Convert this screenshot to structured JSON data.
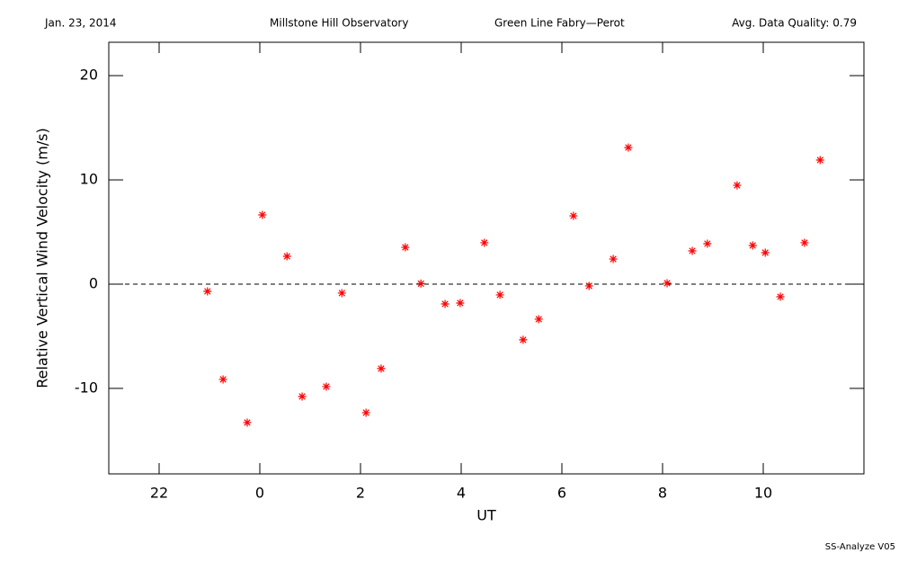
{
  "chart_data": {
    "type": "scatter",
    "header": [
      "Jan. 23, 2014",
      "Millstone Hill Observatory",
      "Green Line Fabry—Perot",
      "Avg. Data Quality: 0.79"
    ],
    "footer": "SS-Analyze V05",
    "x_label": "UT",
    "y_label": "Relative Vertical Wind Velocity (m/s)",
    "xlim": [
      -3,
      12
    ],
    "ylim": [
      -18.2,
      23.2
    ],
    "xticks": [
      {
        "value": -2,
        "label": "22"
      },
      0,
      2,
      4,
      6,
      8,
      10
    ],
    "yticks": [
      -10,
      0,
      10,
      20
    ],
    "hline": 0,
    "color": "#ff0000",
    "x": [
      -1.04,
      -0.73,
      -0.25,
      0.05,
      0.54,
      0.84,
      1.32,
      1.63,
      2.11,
      2.41,
      2.89,
      3.2,
      3.68,
      3.98,
      4.46,
      4.77,
      5.23,
      5.54,
      6.23,
      6.54,
      7.02,
      7.32,
      8.09,
      8.59,
      8.89,
      9.48,
      9.79,
      10.04,
      10.34,
      10.82,
      11.13
    ],
    "values": [
      -0.69,
      -9.14,
      -13.28,
      6.64,
      2.67,
      -10.78,
      -9.83,
      -0.86,
      -12.33,
      -8.1,
      3.53,
      0.05,
      -1.9,
      -1.81,
      3.97,
      -1.03,
      -5.34,
      -3.36,
      6.55,
      -0.17,
      2.41,
      13.1,
      0.09,
      3.19,
      3.88,
      9.48,
      3.71,
      3.02,
      -1.21,
      3.97,
      11.9
    ]
  }
}
